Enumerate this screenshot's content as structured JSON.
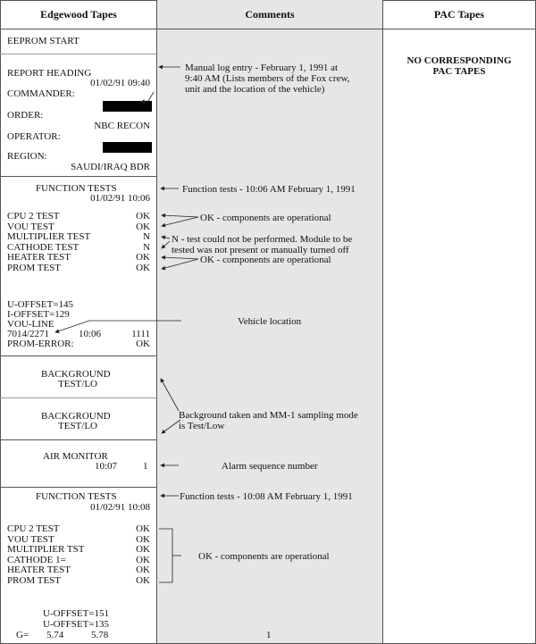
{
  "headers": {
    "edgewood": "Edgewood Tapes",
    "comments": "Comments",
    "pac": "PAC Tapes"
  },
  "pac": {
    "line1": "NO CORRESPONDING",
    "line2": "PAC TAPES"
  },
  "eeprom": "EEPROM START",
  "report": {
    "heading": "REPORT HEADING",
    "datetime": "01/02/91 09:40",
    "commander": "COMMANDER:",
    "order": "ORDER:",
    "order_value": "NBC RECON",
    "operator": "OPERATOR:",
    "region": "REGION:",
    "region_value": "SAUDI/IRAQ BDR"
  },
  "ft1": {
    "title": "FUNCTION TESTS",
    "datetime": "01/02/91 10:06",
    "tests": [
      {
        "name": "CPU 2 TEST",
        "result": "OK"
      },
      {
        "name": "VOU TEST",
        "result": "OK"
      },
      {
        "name": "MULTIPLIER TEST",
        "result": "N"
      },
      {
        "name": "CATHODE TEST",
        "result": "N"
      },
      {
        "name": "HEATER TEST",
        "result": "OK"
      },
      {
        "name": "PROM TEST",
        "result": "OK"
      }
    ],
    "u_offset": "U-OFFSET=145",
    "i_offset": "I-OFFSET=129",
    "vou_line": "VOU-LINE",
    "loc": "7014/2271",
    "time": "10:06",
    "code": "1111",
    "prom_error": "PROM-ERROR:",
    "prom_error_value": "OK"
  },
  "bg": {
    "line1": "BACKGROUND",
    "line2": "TEST/LO"
  },
  "air": {
    "title": "AIR MONITOR",
    "time": "10:07",
    "seq": "1"
  },
  "ft2": {
    "title": "FUNCTION TESTS",
    "datetime": "01/02/91  10:08",
    "tests": [
      {
        "name": "CPU 2 TEST",
        "result": "OK"
      },
      {
        "name": "VOU TEST",
        "result": "OK"
      },
      {
        "name": "MULTIPLIER TST",
        "result": "OK"
      },
      {
        "name": "CATHODE 1=",
        "result": "OK"
      },
      {
        "name": "HEATER TEST",
        "result": "OK"
      },
      {
        "name": "PROM TEST",
        "result": "OK"
      }
    ],
    "u1": "U-OFFSET=151",
    "u2": "U-OFFSET=135",
    "g": "G=",
    "g1": "5.74",
    "g2": "5.78"
  },
  "comments": {
    "manual1": "Manual log entry - February 1, 1991 at",
    "manual2": "9:40 AM (Lists members of the Fox crew,",
    "manual3": "unit and  the location of the vehicle)",
    "ft1": "Function tests - 10:06 AM February 1, 1991",
    "ok": "OK - components are operational",
    "n1": "N - test could not be performed.  Module to be",
    "n2": "tested was not present or manually turned off",
    "vehicle": "Vehicle location",
    "bg1": "Background taken and MM-1 sampling mode",
    "bg2": "is Test/Low",
    "alarm": "Alarm sequence number",
    "ft2": "Function tests - 10:08 AM February 1, 1991",
    "page": "1"
  },
  "colors": {
    "comments_bg": "#e6e6e6",
    "redaction": "#000000"
  }
}
